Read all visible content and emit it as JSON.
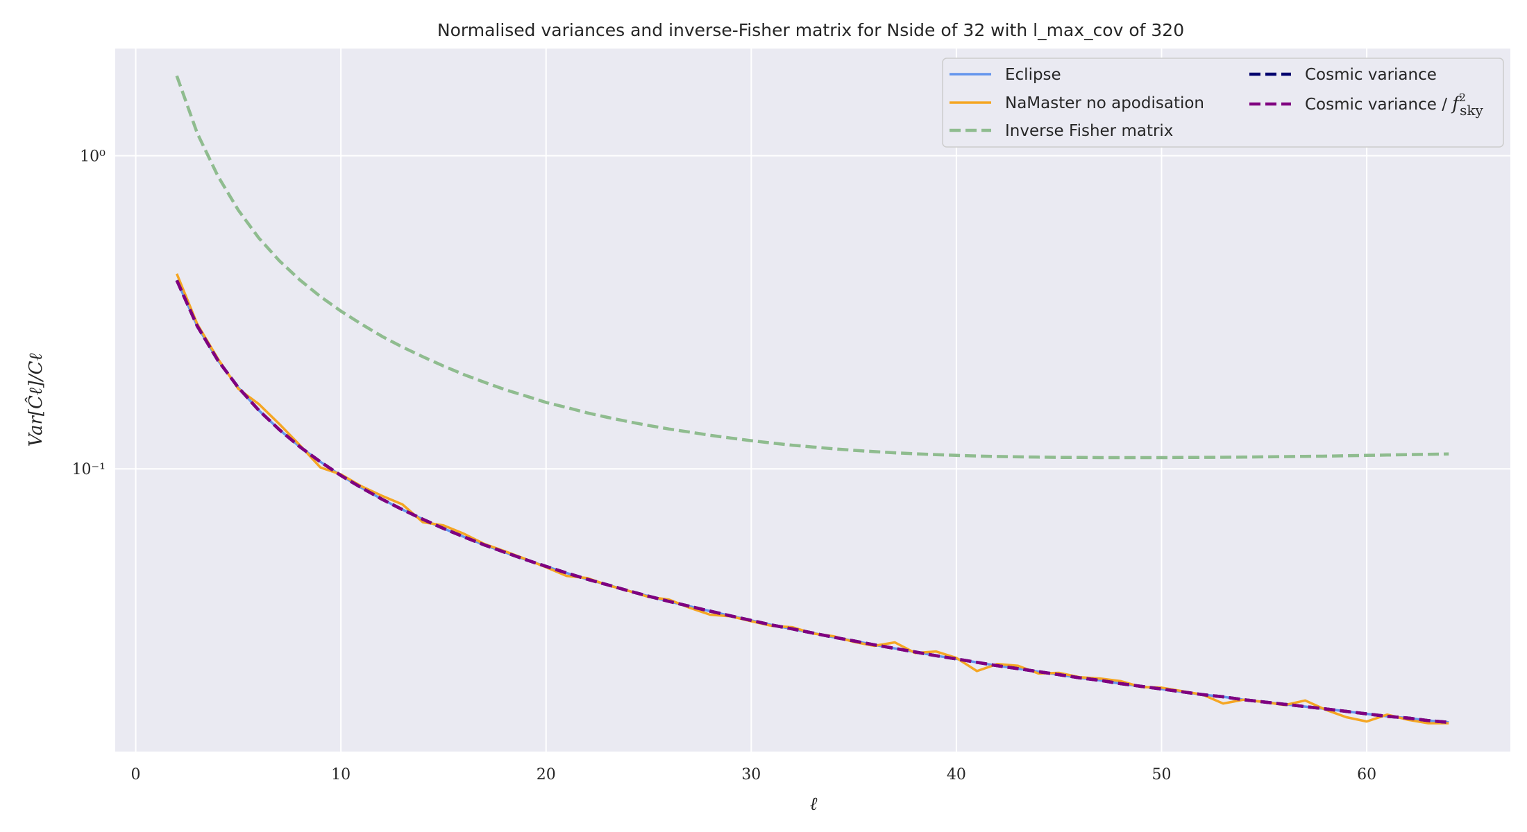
{
  "chart_data": {
    "type": "line",
    "title": "Normalised variances and inverse-Fisher matrix for Nside of 32 with l_max_cov of 320",
    "xlabel": "ℓ",
    "ylabel": "Var[Ĉℓ]/Cℓ",
    "yscale": "log",
    "xlim": [
      -1,
      67
    ],
    "ylim": [
      0.0125,
      2.2
    ],
    "grid": true,
    "legend_position": "top-right",
    "x_ticks": [
      0,
      10,
      20,
      30,
      40,
      50,
      60
    ],
    "x_tick_labels": [
      "0",
      "10",
      "20",
      "30",
      "40",
      "50",
      "60"
    ],
    "y_ticks": [
      1,
      0.1
    ],
    "y_tick_labels": [
      "10⁰",
      "10⁻¹"
    ],
    "x": [
      2,
      3,
      4,
      5,
      6,
      7,
      8,
      9,
      10,
      11,
      12,
      13,
      14,
      15,
      16,
      17,
      18,
      19,
      20,
      21,
      22,
      23,
      24,
      25,
      26,
      27,
      28,
      29,
      30,
      31,
      32,
      33,
      34,
      35,
      36,
      37,
      38,
      39,
      40,
      41,
      42,
      43,
      44,
      45,
      46,
      47,
      48,
      49,
      50,
      51,
      52,
      53,
      54,
      55,
      56,
      57,
      58,
      59,
      60,
      61,
      62,
      63,
      64
    ],
    "series": [
      {
        "name": "Eclipse",
        "color": "#6495ED",
        "dash": "solid",
        "values": [
          0.4,
          0.2857,
          0.2222,
          0.1818,
          0.1538,
          0.1333,
          0.1176,
          0.1053,
          0.0952,
          0.087,
          0.08,
          0.0741,
          0.069,
          0.0645,
          0.0606,
          0.0571,
          0.0541,
          0.0513,
          0.0488,
          0.0465,
          0.0444,
          0.0426,
          0.0408,
          0.0392,
          0.0377,
          0.0364,
          0.0351,
          0.0339,
          0.0328,
          0.0317,
          0.0308,
          0.0299,
          0.029,
          0.0282,
          0.0274,
          0.0267,
          0.026,
          0.0253,
          0.0247,
          0.0241,
          0.0235,
          0.023,
          0.0225,
          0.022,
          0.0215,
          0.0211,
          0.0206,
          0.0202,
          0.0198,
          0.0194,
          0.019,
          0.0187,
          0.0183,
          0.018,
          0.0177,
          0.0174,
          0.0171,
          0.0168,
          0.0165,
          0.0162,
          0.016,
          0.0157,
          0.0155
        ]
      },
      {
        "name": "NaMaster no apodisation",
        "color": "#F5A623",
        "dash": "solid",
        "values": [
          0.42,
          0.29,
          0.225,
          0.18,
          0.161,
          0.139,
          0.119,
          0.101,
          0.096,
          0.088,
          0.082,
          0.077,
          0.0675,
          0.066,
          0.062,
          0.0575,
          0.0545,
          0.0515,
          0.0485,
          0.0455,
          0.0448,
          0.0425,
          0.0408,
          0.039,
          0.0382,
          0.036,
          0.0342,
          0.0338,
          0.0326,
          0.0315,
          0.0312,
          0.0298,
          0.0292,
          0.028,
          0.0272,
          0.0279,
          0.0258,
          0.0261,
          0.0249,
          0.0226,
          0.0238,
          0.0235,
          0.0222,
          0.0223,
          0.0216,
          0.0214,
          0.021,
          0.0201,
          0.02,
          0.0195,
          0.019,
          0.0178,
          0.0183,
          0.018,
          0.0176,
          0.0182,
          0.017,
          0.0161,
          0.0156,
          0.0164,
          0.0158,
          0.0154,
          0.0154
        ]
      },
      {
        "name": "Inverse Fisher matrix",
        "color": "#8FBC8F",
        "dash": "dashed",
        "values": [
          1.8,
          1.18,
          0.862,
          0.67,
          0.546,
          0.462,
          0.401,
          0.355,
          0.319,
          0.29,
          0.265,
          0.245,
          0.228,
          0.213,
          0.2,
          0.189,
          0.179,
          0.171,
          0.163,
          0.157,
          0.151,
          0.146,
          0.1415,
          0.1375,
          0.134,
          0.131,
          0.128,
          0.1254,
          0.123,
          0.1209,
          0.119,
          0.1174,
          0.1159,
          0.1146,
          0.1135,
          0.1125,
          0.1117,
          0.111,
          0.1104,
          0.1099,
          0.1095,
          0.1092,
          0.109,
          0.1088,
          0.1087,
          0.1086,
          0.1086,
          0.1086,
          0.1086,
          0.1087,
          0.1088,
          0.1089,
          0.109,
          0.1092,
          0.1094,
          0.1096,
          0.1098,
          0.1101,
          0.1104,
          0.1107,
          0.111,
          0.1113,
          0.1116
        ]
      },
      {
        "name": "Cosmic variance",
        "color": "#00006E",
        "dash": "dashed",
        "values": [
          0.4,
          0.2857,
          0.2222,
          0.1818,
          0.1538,
          0.1333,
          0.1176,
          0.1053,
          0.0952,
          0.087,
          0.08,
          0.0741,
          0.069,
          0.0645,
          0.0606,
          0.0571,
          0.0541,
          0.0513,
          0.0488,
          0.0465,
          0.0444,
          0.0426,
          0.0408,
          0.0392,
          0.0377,
          0.0364,
          0.0351,
          0.0339,
          0.0328,
          0.0317,
          0.0308,
          0.0299,
          0.029,
          0.0282,
          0.0274,
          0.0267,
          0.026,
          0.0253,
          0.0247,
          0.0241,
          0.0235,
          0.023,
          0.0225,
          0.022,
          0.0215,
          0.0211,
          0.0206,
          0.0202,
          0.0198,
          0.0194,
          0.019,
          0.0187,
          0.0183,
          0.018,
          0.0177,
          0.0174,
          0.0171,
          0.0168,
          0.0165,
          0.0162,
          0.016,
          0.0157,
          0.0155
        ]
      },
      {
        "name": "Cosmic variance / f²sky",
        "color": "#800080",
        "dash": "dashed",
        "values": [
          0.4,
          0.2857,
          0.2222,
          0.1818,
          0.1538,
          0.1333,
          0.1176,
          0.1053,
          0.0952,
          0.087,
          0.08,
          0.0741,
          0.069,
          0.0645,
          0.0606,
          0.0571,
          0.0541,
          0.0513,
          0.0488,
          0.0465,
          0.0444,
          0.0426,
          0.0408,
          0.0392,
          0.0377,
          0.0364,
          0.0351,
          0.0339,
          0.0328,
          0.0317,
          0.0308,
          0.0299,
          0.029,
          0.0282,
          0.0274,
          0.0267,
          0.026,
          0.0253,
          0.0247,
          0.0241,
          0.0235,
          0.023,
          0.0225,
          0.022,
          0.0215,
          0.0211,
          0.0206,
          0.0202,
          0.0198,
          0.0194,
          0.019,
          0.0187,
          0.0183,
          0.018,
          0.0177,
          0.0174,
          0.0171,
          0.0168,
          0.0165,
          0.0162,
          0.016,
          0.0157,
          0.0155
        ]
      }
    ],
    "legend": [
      {
        "label": "Eclipse"
      },
      {
        "label": "NaMaster no apodisation"
      },
      {
        "label": "Inverse Fisher matrix"
      },
      {
        "label": "Cosmic variance"
      },
      {
        "label": "Cosmic variance / ",
        "math_base": "f",
        "math_sup": "2",
        "math_sub": "sky"
      }
    ]
  }
}
